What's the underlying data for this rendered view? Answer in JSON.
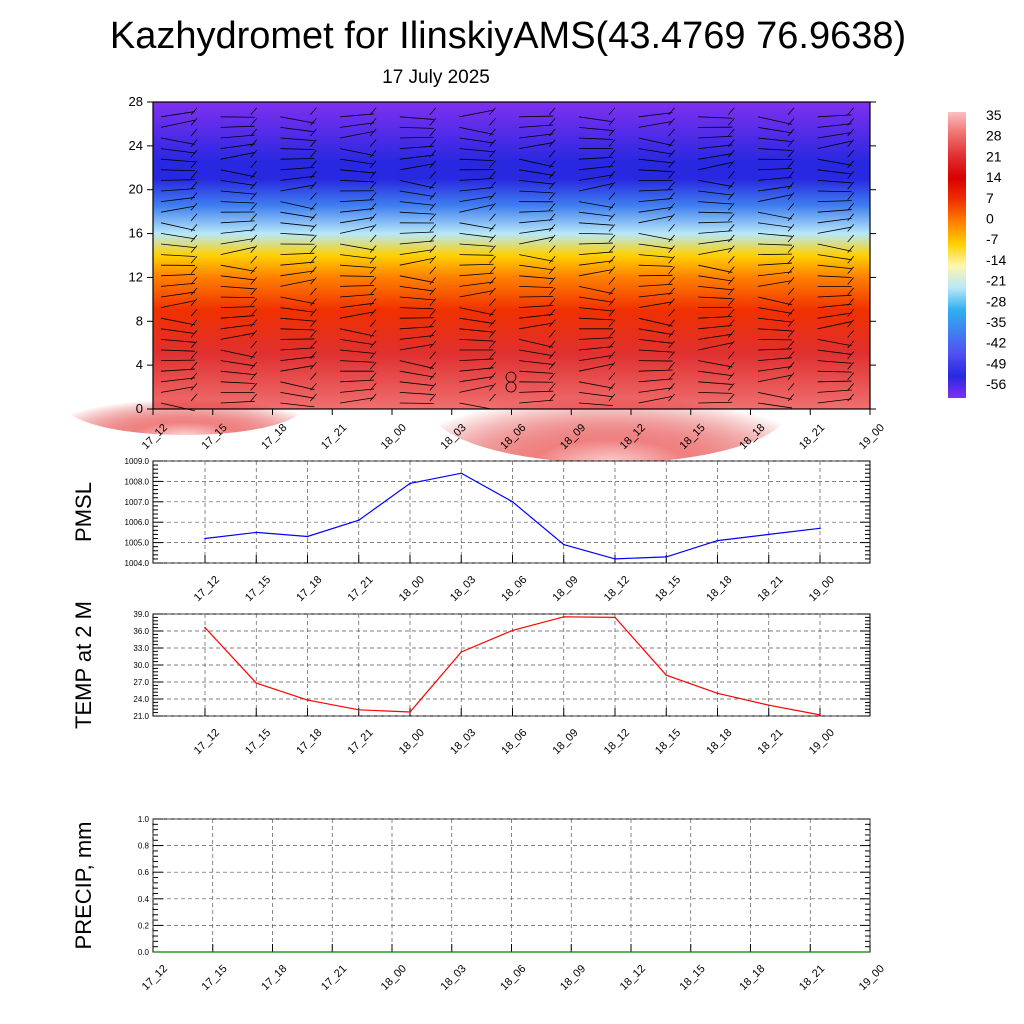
{
  "title": "Kazhydromet for IlinskiyAMS(43.4769 76.9638)",
  "subtitle": "17 July 2025",
  "chart_data": [
    {
      "type": "heatmap",
      "name": "temperature-cross-section",
      "x_ticks": [
        "17_12",
        "17_15",
        "17_18",
        "17_21",
        "18_00",
        "18_03",
        "18_06",
        "18_09",
        "18_12",
        "18_15",
        "18_18",
        "18_21",
        "19_00"
      ],
      "y_ticks": [
        "0",
        "4",
        "8",
        "12",
        "16",
        "20",
        "24",
        "28"
      ],
      "ylim": [
        0,
        28
      ],
      "colorbar": {
        "labels": [
          "35",
          "28",
          "21",
          "14",
          "7",
          "0",
          "-7",
          "-14",
          "-21",
          "-28",
          "-35",
          "-42",
          "-49",
          "-56"
        ],
        "colors": [
          "#fac0c0",
          "#f07070",
          "#e03030",
          "#d80000",
          "#f03000",
          "#ff8000",
          "#ffd000",
          "#fff6b0",
          "#b8e8f8",
          "#30b0f0",
          "#4080f0",
          "#5050f0",
          "#2828e0",
          "#8030f0"
        ]
      },
      "surface_layer": {
        "value_range": [
          21,
          38
        ]
      },
      "layers": [
        {
          "height": 0,
          "value": 30
        },
        {
          "height": 5,
          "value": 22
        },
        {
          "height": 9,
          "value": 8
        },
        {
          "height": 12,
          "value": -2
        },
        {
          "height": 14,
          "value": -12
        },
        {
          "height": 16,
          "value": -25
        },
        {
          "height": 18.5,
          "value": -38
        },
        {
          "height": 21,
          "value": -56
        },
        {
          "height": 22.5,
          "value": -52
        },
        {
          "height": 28,
          "value": -60
        }
      ],
      "wind_barbs": true
    },
    {
      "type": "line",
      "name": "pmsl",
      "ylabel": "PMSL",
      "categories": [
        "17_12",
        "17_15",
        "17_18",
        "17_21",
        "18_00",
        "18_03",
        "18_06",
        "18_09",
        "18_12",
        "18_15",
        "18_18",
        "18_21",
        "19_00"
      ],
      "values": [
        1005.2,
        1005.5,
        1005.3,
        1006.1,
        1007.9,
        1008.4,
        1007.0,
        1004.9,
        1004.2,
        1004.3,
        1005.1,
        1005.4,
        1005.7
      ],
      "ylim": [
        1004.0,
        1009.0
      ],
      "y_ticks": [
        "1004.0",
        "1005.0",
        "1006.0",
        "1007.0",
        "1008.0",
        "1009.0"
      ],
      "color": "#0000ff",
      "grid": true
    },
    {
      "type": "line",
      "name": "temp-2m",
      "ylabel": "TEMP at 2 M",
      "categories": [
        "17_12",
        "17_15",
        "17_18",
        "17_21",
        "18_00",
        "18_03",
        "18_06",
        "18_09",
        "18_12",
        "18_15",
        "18_18",
        "18_21",
        "19_00"
      ],
      "values": [
        36.6,
        26.8,
        23.8,
        22.1,
        21.7,
        32.3,
        36.1,
        38.5,
        38.4,
        28.2,
        25.0,
        22.9,
        21.2
      ],
      "ylim": [
        21.0,
        39.0
      ],
      "y_ticks": [
        "21.0",
        "24.0",
        "27.0",
        "30.0",
        "33.0",
        "36.0",
        "39.0"
      ],
      "color": "#ff0000",
      "grid": true
    },
    {
      "type": "bar",
      "name": "precip",
      "ylabel": "PRECIP, mm",
      "categories": [
        "17_12",
        "17_15",
        "17_18",
        "17_21",
        "18_00",
        "18_03",
        "18_06",
        "18_09",
        "18_12",
        "18_15",
        "18_18",
        "18_21",
        "19_00"
      ],
      "values": [
        0,
        0,
        0,
        0,
        0,
        0,
        0,
        0,
        0,
        0,
        0,
        0,
        0
      ],
      "ylim": [
        0.0,
        1.0
      ],
      "y_ticks": [
        "0.0",
        "0.2",
        "0.4",
        "0.6",
        "0.8",
        "1.0"
      ],
      "color": "#008000",
      "grid": true
    }
  ]
}
